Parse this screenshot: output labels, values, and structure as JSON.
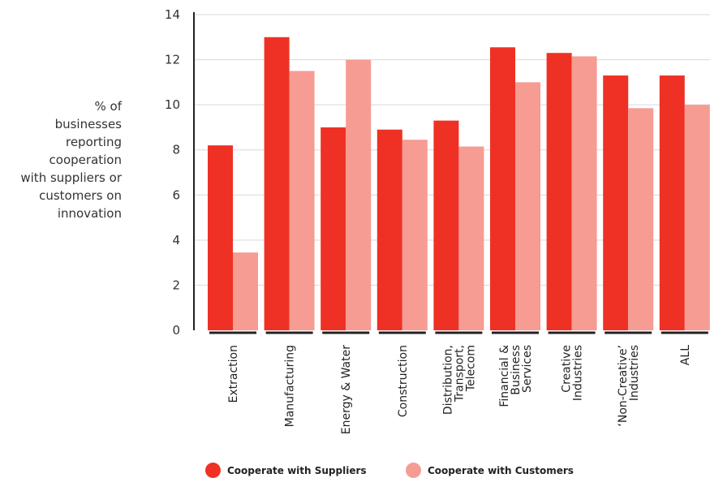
{
  "chart_data": {
    "type": "bar",
    "title": "",
    "xlabel": "",
    "ylabel": "% of\nbusinesses\nreporting\ncooperation\nwith suppliers or\ncustomers on\ninnovation",
    "ylim": [
      0,
      14
    ],
    "yticks": [
      0,
      2,
      4,
      6,
      8,
      10,
      12,
      14
    ],
    "grid": true,
    "legend_position": "bottom",
    "categories": [
      "Extraction",
      "Manufacturing",
      "Energy & Water",
      "Construction",
      "Distribution,\nTransport,\nTelecom",
      "Financial &\nBusiness\nServices",
      "Creative\nIndustries",
      "‘Non-Creative’\nIndustries",
      "ALL"
    ],
    "series": [
      {
        "name": "Cooperate with Suppliers",
        "color": "#ee3124",
        "values": [
          8.2,
          13.0,
          9.0,
          8.9,
          9.3,
          12.55,
          12.3,
          11.3,
          11.3
        ]
      },
      {
        "name": "Cooperate with Customers",
        "color": "#f69c93",
        "values": [
          3.45,
          11.5,
          12.0,
          8.45,
          8.15,
          11.0,
          12.15,
          9.85,
          10.0
        ]
      }
    ]
  }
}
